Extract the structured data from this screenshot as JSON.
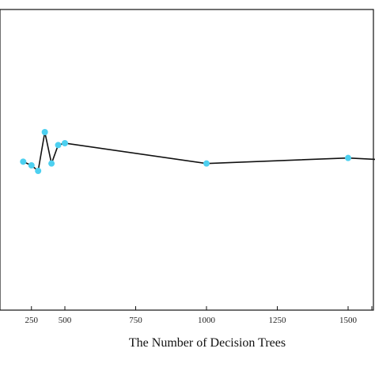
{
  "chart_data": {
    "type": "line",
    "title": "",
    "xlabel": "The Number of  Decision Trees",
    "ylabel": "",
    "xlim": [
      0,
      1750
    ],
    "x_ticks": [
      250,
      500,
      750,
      1000,
      1250,
      1500
    ],
    "x_tick_labels": [
      "250",
      "500",
      "750",
      "1000",
      "1250",
      "1500"
    ],
    "grid": false,
    "legend": "none",
    "series": [
      {
        "x": [
          200,
          250,
          300,
          350,
          400,
          450,
          500,
          1000,
          1500,
          1750
        ],
        "y": [
          0.62,
          0.6,
          0.57,
          0.78,
          0.61,
          0.71,
          0.72,
          0.61,
          0.64,
          0.62
        ],
        "line_color": "#111111",
        "marker_color": "#4dd0f0"
      }
    ]
  }
}
